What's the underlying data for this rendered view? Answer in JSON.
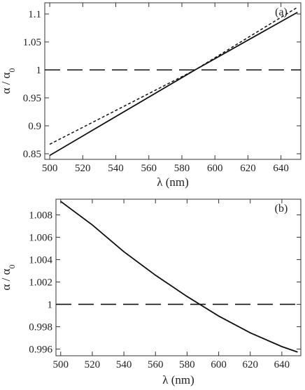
{
  "chart_data": [
    {
      "type": "line",
      "panel_label": "(a)",
      "xlabel": "λ (nm)",
      "ylabel": "α / α",
      "ylabel_sub": "0",
      "xlim": [
        497,
        652
      ],
      "ylim": [
        0.84,
        1.12
      ],
      "xticks": [
        500,
        520,
        540,
        560,
        580,
        600,
        620,
        640
      ],
      "yticks": [
        0.85,
        0.9,
        0.95,
        1,
        1.05,
        1.1
      ],
      "ytick_labels": [
        "0.85",
        "0.9",
        "0.95",
        "1",
        "1.05",
        "1.1"
      ],
      "grid": false,
      "series": [
        {
          "style": "solid",
          "x": [
            500,
            588,
            650
          ],
          "y": [
            0.847,
            1.0,
            1.103
          ]
        },
        {
          "style": "dotted",
          "x": [
            500,
            588,
            650
          ],
          "y": [
            0.867,
            1.0,
            1.112
          ]
        },
        {
          "style": "dashed",
          "x": [
            497,
            652
          ],
          "y": [
            1.0,
            1.0
          ]
        }
      ]
    },
    {
      "type": "line",
      "panel_label": "(b)",
      "xlabel": "λ (nm)",
      "ylabel": "α / α",
      "ylabel_sub": "0",
      "xlim": [
        497,
        652
      ],
      "ylim": [
        0.9954,
        1.0094
      ],
      "xticks": [
        500,
        520,
        540,
        560,
        580,
        600,
        620,
        640
      ],
      "yticks": [
        0.996,
        0.998,
        1,
        1.002,
        1.004,
        1.006,
        1.008
      ],
      "ytick_labels": [
        "0.996",
        "0.998",
        "1",
        "1.002",
        "1.004",
        "1.006",
        "1.008"
      ],
      "grid": false,
      "series": [
        {
          "style": "solid",
          "x": [
            500,
            520,
            540,
            560,
            580,
            588,
            600,
            620,
            640,
            650
          ],
          "y": [
            1.0092,
            1.0071,
            1.0047,
            1.0026,
            1.0007,
            1.0,
            0.99895,
            0.99745,
            0.99622,
            0.99573
          ]
        },
        {
          "style": "dotted",
          "x": [
            500,
            520,
            540,
            560,
            580,
            588,
            600,
            620,
            640,
            650
          ],
          "y": [
            1.0092,
            1.0071,
            1.0047,
            1.0026,
            1.0007,
            1.0,
            0.99895,
            0.99745,
            0.99622,
            0.99573
          ]
        },
        {
          "style": "dashed",
          "x": [
            497,
            652
          ],
          "y": [
            1.0,
            1.0
          ]
        }
      ]
    }
  ]
}
